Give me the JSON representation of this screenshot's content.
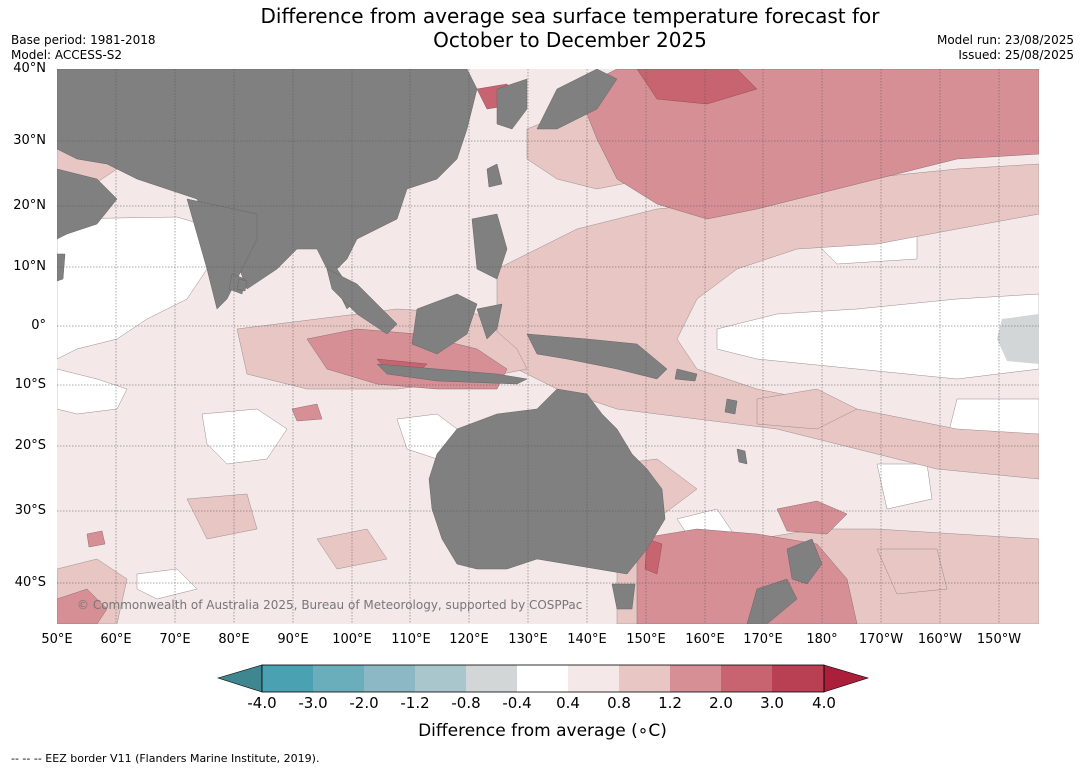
{
  "header": {
    "title_line1": "Difference from average sea surface temperature forecast for",
    "title_line2": "October to December 2025",
    "base_period": "Base period: 1981-2018",
    "model": "Model: ACCESS-S2",
    "model_run": "Model run: 23/08/2025",
    "issued": "Issued: 25/08/2025"
  },
  "map": {
    "lat_labels": [
      "40°N",
      "30°N",
      "20°N",
      "10°N",
      "0°",
      "10°S",
      "20°S",
      "30°S",
      "40°S"
    ],
    "lon_labels": [
      "50°E",
      "60°E",
      "70°E",
      "80°E",
      "90°E",
      "100°E",
      "110°E",
      "120°E",
      "130°E",
      "140°E",
      "150°E",
      "160°E",
      "170°E",
      "180°",
      "170°W",
      "160°W",
      "150°W"
    ],
    "copyright": "© Commonwealth of Australia 2025, Bureau of Meteorology, supported by COSPPac",
    "land_color": "#808080",
    "colors": {
      "c_0_4_0_8": "#f4e8e8",
      "c_0_8_1_2": "#e8c6c4",
      "c_1_2_2_0": "#d78f96",
      "c_2_0_3_0": "#c86470",
      "c_neg": "#d3d6d6"
    }
  },
  "colorbar": {
    "ticks": [
      "-4.0",
      "-3.0",
      "-2.0",
      "-1.2",
      "-0.8",
      "-0.4",
      "0.4",
      "0.8",
      "1.2",
      "2.0",
      "3.0",
      "4.0"
    ],
    "colors": [
      "#3e8791",
      "#4aa1b2",
      "#6aaebb",
      "#8bb8c4",
      "#a8c6cb",
      "#d3d6d6",
      "#ffffff",
      "#f4e8e8",
      "#e8c6c4",
      "#d78f96",
      "#c86470",
      "#b94053"
    ],
    "extend_low_color": "#3e8791",
    "extend_high_color": "#ac1f3a",
    "title": "Difference from average (",
    "title_unit": "∘C)"
  },
  "footnote": "--  --  -- EEZ border V11 (Flanders Marine Institute, 2019)."
}
